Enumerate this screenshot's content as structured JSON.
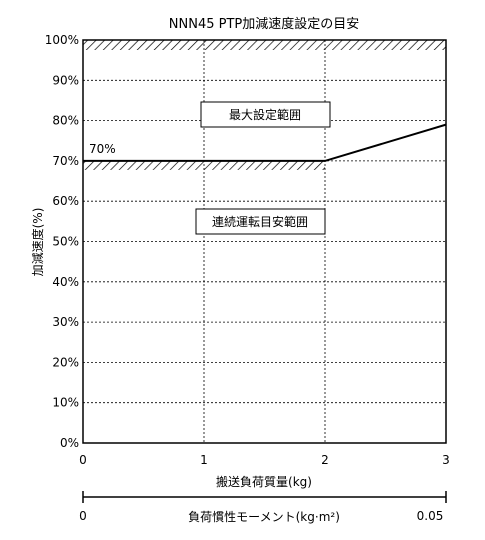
{
  "chart_data": {
    "type": "line",
    "title": "NNN45 PTP加減速度設定の目安",
    "xlabel": "搬送負荷質量(kg)",
    "ylabel": "加減速度(%)",
    "xlim": [
      0,
      3
    ],
    "ylim": [
      0,
      100
    ],
    "x_ticks": [
      "0",
      "1",
      "2",
      "3"
    ],
    "y_ticks": [
      "0%",
      "10%",
      "20%",
      "30%",
      "40%",
      "50%",
      "60%",
      "70%",
      "80%",
      "90%",
      "100%"
    ],
    "grid": true,
    "series": [
      {
        "points": [
          [
            0,
            70
          ],
          [
            2,
            70
          ],
          [
            3,
            79
          ]
        ]
      }
    ],
    "annotations": {
      "max_setting_label": "最大設定範囲",
      "continuous_label": "連続運転目安範囲",
      "line_value_label": "70%"
    },
    "secondary_axis": {
      "label": "負荷慣性モーメント(kg·m²)",
      "min_label": "0",
      "max_label": "0.05",
      "range": [
        0,
        0.05
      ]
    }
  }
}
